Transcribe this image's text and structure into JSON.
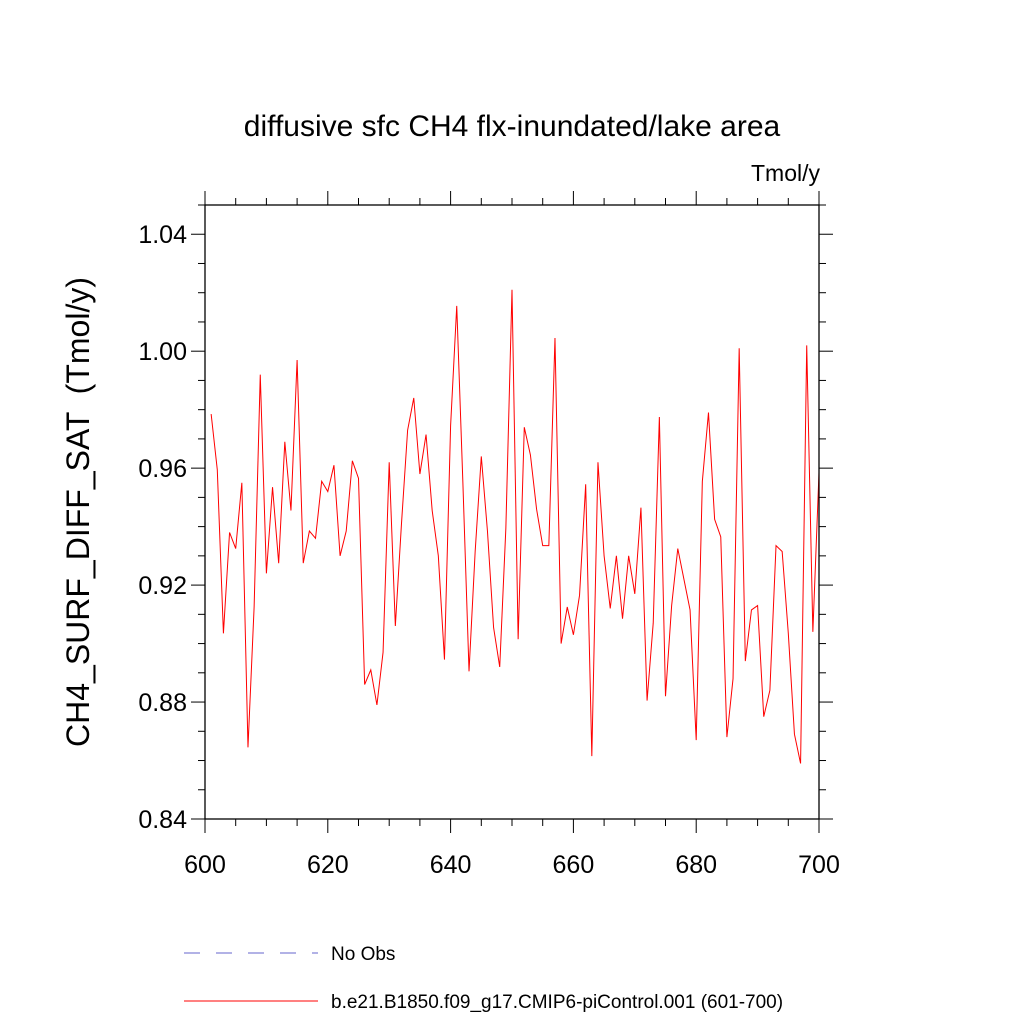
{
  "chart_data": {
    "type": "line",
    "title": "diffusive sfc CH4 flx-inundated/lake area",
    "units": "Tmol/y",
    "ylabel": "CH4_SURF_DIFF_SAT  (Tmol/y)",
    "xlabel": "",
    "xlim": [
      600,
      700
    ],
    "ylim": [
      0.84,
      1.05
    ],
    "xticks": [
      600,
      620,
      640,
      660,
      680,
      700
    ],
    "xtick_labels": [
      "600",
      "620",
      "640",
      "660",
      "680",
      "700"
    ],
    "yticks": [
      0.84,
      0.88,
      0.92,
      0.96,
      1.0,
      1.04
    ],
    "ytick_labels": [
      "0.84",
      "0.88",
      "0.92",
      "0.96",
      "1.00",
      "1.04"
    ],
    "grid": false,
    "legend_placement": "bottom",
    "series": [
      {
        "name": "No Obs",
        "color": "#5555cc",
        "style": "dashed",
        "x": [],
        "y": []
      },
      {
        "name": "b.e21.B1850.f09_g17.CMIP6-piControl.001 (601-700)",
        "color": "#ff0000",
        "style": "solid",
        "x": [
          601,
          602,
          603,
          604,
          605,
          606,
          607,
          608,
          609,
          610,
          611,
          612,
          613,
          614,
          615,
          616,
          617,
          618,
          619,
          620,
          621,
          622,
          623,
          624,
          625,
          626,
          627,
          628,
          629,
          630,
          631,
          632,
          633,
          634,
          635,
          636,
          637,
          638,
          639,
          640,
          641,
          642,
          643,
          644,
          645,
          646,
          647,
          648,
          649,
          650,
          651,
          652,
          653,
          654,
          655,
          656,
          657,
          658,
          659,
          660,
          661,
          662,
          663,
          664,
          665,
          666,
          667,
          668,
          669,
          670,
          671,
          672,
          673,
          674,
          675,
          676,
          677,
          678,
          679,
          680,
          681,
          682,
          683,
          684,
          685,
          686,
          687,
          688,
          689,
          690,
          691,
          692,
          693,
          694,
          695,
          696,
          697,
          698,
          699,
          700
        ],
        "y": [
          0.9785,
          0.9595,
          0.9035,
          0.938,
          0.9325,
          0.955,
          0.8645,
          0.9125,
          0.992,
          0.924,
          0.9535,
          0.9275,
          0.969,
          0.9455,
          0.997,
          0.9275,
          0.9385,
          0.936,
          0.9555,
          0.952,
          0.961,
          0.93,
          0.9385,
          0.9625,
          0.9565,
          0.886,
          0.891,
          0.879,
          0.897,
          0.962,
          0.906,
          0.941,
          0.973,
          0.984,
          0.958,
          0.9715,
          0.9455,
          0.93,
          0.8945,
          0.9745,
          1.0155,
          0.955,
          0.8905,
          0.9315,
          0.964,
          0.9385,
          0.9055,
          0.892,
          0.9395,
          1.021,
          0.9015,
          0.974,
          0.9645,
          0.946,
          0.9335,
          0.9335,
          1.0045,
          0.9,
          0.9125,
          0.903,
          0.9165,
          0.9545,
          0.8615,
          0.962,
          0.93,
          0.912,
          0.93,
          0.9085,
          0.93,
          0.917,
          0.9465,
          0.8805,
          0.907,
          0.9775,
          0.882,
          0.913,
          0.9325,
          0.922,
          0.9115,
          0.867,
          0.9555,
          0.979,
          0.9425,
          0.9365,
          0.868,
          0.888,
          1.001,
          0.894,
          0.9115,
          0.913,
          0.875,
          0.884,
          0.9335,
          0.9315,
          0.9035,
          0.869,
          0.859,
          1.002,
          0.904,
          0.9585
        ]
      }
    ]
  }
}
